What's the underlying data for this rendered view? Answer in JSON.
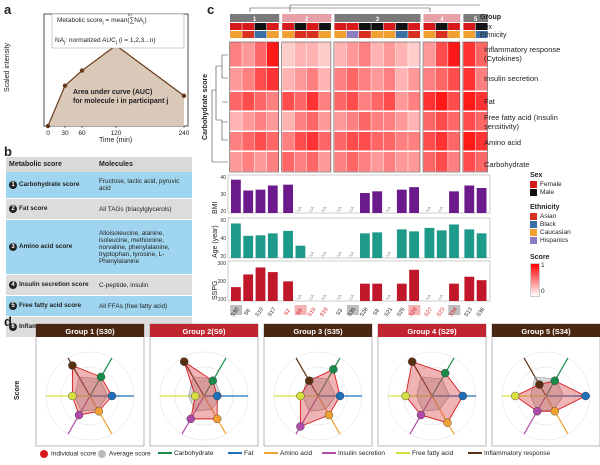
{
  "panels": {
    "a": "a",
    "b": "b",
    "c": "c",
    "d": "d"
  },
  "panel_a": {
    "formula_line1": "Metabolic score",
    "formula_sub": "i",
    "formula_eq": " = mean(∑NA",
    "formula_sub2": "i",
    "formula_close": ")",
    "formula_m": "m",
    "formula_n": "n",
    "formula_line2": "NA",
    "formula_line2_sub": "i",
    "formula_line2_rest": ": normalized AUC",
    "formula_line2_sub2": "i",
    "formula_line2_rest2": " (i = 1,2,3...n)",
    "auc_line1": "Area under curve (AUC)",
    "auc_line2": "for molecule i in participant j",
    "ylabel": "Scaled intensity",
    "xlabel": "Time (min)",
    "xticks": [
      "0",
      "30",
      "60",
      "120",
      "240"
    ]
  },
  "chart_data": {
    "type": "line",
    "title": "",
    "xlabel": "Time (min)",
    "ylabel": "Scaled intensity",
    "x": [
      0,
      30,
      60,
      120,
      240
    ],
    "y": [
      0.0,
      0.4,
      0.55,
      0.8,
      0.3
    ]
  },
  "panel_b": {
    "header_score": "Metabolic score",
    "header_molecules": "Molecules",
    "rows": [
      {
        "num": "1",
        "score": "Carbohydrate score",
        "molecules": "Fructose, lactic acid, pyruvic acid"
      },
      {
        "num": "2",
        "score": "Fat score",
        "molecules": "All TAGs (triacylglycerols)"
      },
      {
        "num": "3",
        "score": "Amino acid score",
        "molecules": "Alloisoleucine, alanine, isoleucine, methionine, norvaline, phenylalanine, tryptophan, tyrosine, L-Phenylalanine"
      },
      {
        "num": "4",
        "score": "Insulin secretion score",
        "molecules": "C-peptide, insulin"
      },
      {
        "num": "5",
        "score": "Free fatty acid score",
        "molecules": "All FFAs (free fatty acid)"
      },
      {
        "num": "6",
        "score": "Inflammatory response",
        "molecules": "All cytokines"
      }
    ]
  },
  "panel_c": {
    "group_nums": [
      "1",
      "2",
      "3",
      "4",
      "5"
    ],
    "track_labels": [
      "Group",
      "Sex",
      "Ethnicity"
    ],
    "row_labels": [
      "Inflammatory response (Cytokines)",
      "Insulin secretion",
      "Fat",
      "Free fatty acid (Insulin sensitivity)",
      "Amino acid",
      "Carbohydrate"
    ],
    "side_label": "Carbohydrate score",
    "bar_labels": [
      "BMI",
      "Age (year)",
      "SSPG"
    ],
    "bmi_ticks": [
      "40",
      "30",
      "20"
    ],
    "age_ticks": [
      "60",
      "40",
      "20"
    ],
    "sspg_ticks": [
      "300",
      "200",
      "100"
    ],
    "na": "NA",
    "samples": [
      "S30",
      "S6",
      "S10",
      "S17",
      "S2",
      "S9",
      "S15",
      "S19",
      "S3",
      "S35",
      "S28",
      "S8",
      "S21",
      "S25",
      "S29",
      "S27",
      "S23",
      "S34",
      "S13",
      "S36"
    ],
    "legend": {
      "sex_title": "Sex",
      "sex_items": [
        "Female",
        "Male"
      ],
      "eth_title": "Ethnicity",
      "eth_items": [
        "Asian",
        "Black",
        "Caucasian",
        "Hispanics"
      ],
      "score_title": "Score",
      "score_hi": "1",
      "score_lo": "0"
    },
    "colors": {
      "female": "#d7191c",
      "male": "#111111",
      "asian": "#d7301f",
      "black": "#3a6ea5",
      "caucasian": "#f0a030",
      "hispanic": "#8c7cc0",
      "bmi": "#6a1a8a",
      "age": "#1e9a8a",
      "sspg": "#c0182a"
    }
  },
  "panel_d": {
    "score_axis": "Score",
    "groups": [
      {
        "title": "Group 1 (S30)",
        "header_color": "#4a2510"
      },
      {
        "title": "Group 2(S9)",
        "header_color": "#c0242e"
      },
      {
        "title": "Group 3 (S35)",
        "header_color": "#4a2510"
      },
      {
        "title": "Group 4 (S29)",
        "header_color": "#c0242e"
      },
      {
        "title": "Group 5 (S34)",
        "header_color": "#4a2510"
      }
    ],
    "legend": [
      {
        "label": "Individual score",
        "color": "#d7191c"
      },
      {
        "label": "Average score",
        "color": "#bbbbbb"
      },
      {
        "label": "Carbohydrate",
        "color": "#1a8a4a"
      },
      {
        "label": "Fat",
        "color": "#1f6fb8"
      },
      {
        "label": "Amino acid",
        "color": "#f0a030"
      },
      {
        "label": "Insulin secretion",
        "color": "#b04aa8"
      },
      {
        "label": "Free fatty acid",
        "color": "#d8e040"
      },
      {
        "label": "Inflammatory response",
        "color": "#5a2e10"
      }
    ]
  }
}
